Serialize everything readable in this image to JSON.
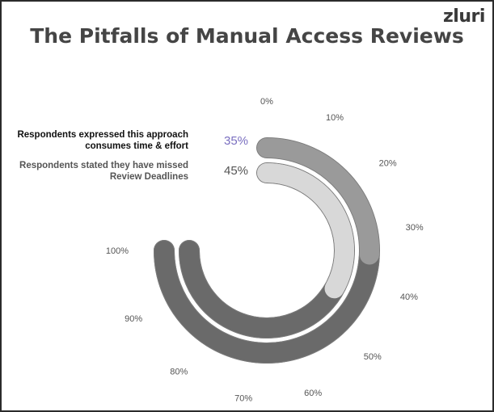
{
  "logo": "zluri",
  "title": "The Pitfalls of Manual Access Reviews",
  "colors": {
    "outer_base": "#9a9a9a",
    "inner_base": "#d8d8d8",
    "fill": "#6a6a6a",
    "stroke": "#7a7a7a",
    "value1": "#7a6fc0"
  },
  "chart_data": {
    "type": "radial-bar",
    "title": "The Pitfalls of Manual Access Reviews",
    "scale_max": 100,
    "ticks": [
      "0%",
      "10%",
      "20%",
      "30%",
      "40%",
      "50%",
      "60%",
      "70%",
      "80%",
      "90%",
      "100%"
    ],
    "series": [
      {
        "label": "Respondents expressed this approach consumes time & effort",
        "value": 35,
        "value_label": "35%"
      },
      {
        "label": "Respondents stated they have missed Review Deadlines",
        "value": 45,
        "value_label": "45%"
      }
    ],
    "legend_position": "left"
  }
}
